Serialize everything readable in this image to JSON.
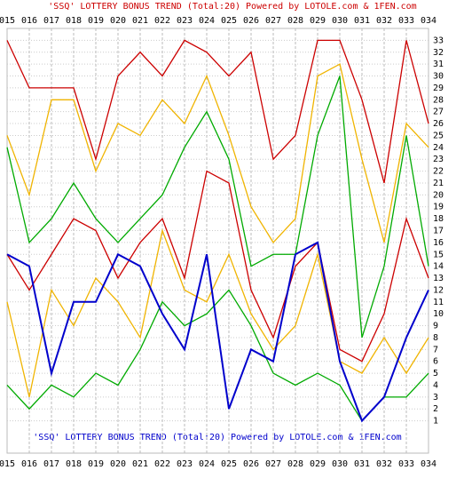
{
  "chart_data": {
    "type": "line",
    "title": "'SSQ' LOTTERY BONUS TREND (Total:20)  Powered by LOTOLE.com & 1FEN.com",
    "categories": [
      "015",
      "016",
      "017",
      "018",
      "019",
      "020",
      "021",
      "022",
      "023",
      "024",
      "025",
      "026",
      "027",
      "028",
      "029",
      "030",
      "031",
      "032",
      "033",
      "034"
    ],
    "series": [
      {
        "color": "#cc0000",
        "values": [
          33,
          29,
          29,
          29,
          23,
          30,
          32,
          30,
          33,
          32,
          30,
          32,
          23,
          25,
          33,
          33,
          28,
          21,
          33,
          26
        ]
      },
      {
        "color": "#f0b400",
        "values": [
          25,
          20,
          28,
          28,
          22,
          26,
          25,
          28,
          26,
          30,
          25,
          19,
          16,
          18,
          30,
          31,
          23,
          16,
          26,
          24
        ]
      },
      {
        "color": "#00aa00",
        "values": [
          24,
          16,
          18,
          21,
          18,
          16,
          18,
          20,
          24,
          27,
          23,
          14,
          15,
          15,
          25,
          30,
          8,
          14,
          25,
          14
        ]
      },
      {
        "color": "#cc0000",
        "values": [
          15,
          12,
          15,
          18,
          17,
          13,
          16,
          18,
          13,
          22,
          21,
          12,
          8,
          14,
          16,
          7,
          6,
          10,
          18,
          13
        ]
      },
      {
        "color": "#f0b400",
        "values": [
          11,
          3,
          12,
          9,
          13,
          11,
          8,
          17,
          12,
          11,
          15,
          10,
          7,
          9,
          15,
          6,
          5,
          8,
          5,
          8
        ]
      },
      {
        "color": "#00aa00",
        "values": [
          4,
          2,
          4,
          3,
          5,
          4,
          7,
          11,
          9,
          10,
          12,
          9,
          5,
          4,
          5,
          4,
          1,
          3,
          3,
          5
        ]
      },
      {
        "color": "#0000cc",
        "values": [
          15,
          14,
          5,
          11,
          11,
          15,
          14,
          10,
          7,
          15,
          2,
          7,
          6,
          15,
          16,
          6,
          1,
          3,
          8,
          12
        ]
      }
    ],
    "ylim": [
      0,
      34
    ],
    "yticks": [
      1,
      2,
      3,
      4,
      5,
      6,
      7,
      8,
      9,
      10,
      11,
      12,
      13,
      14,
      15,
      16,
      17,
      18,
      19,
      20,
      21,
      22,
      23,
      24,
      25,
      26,
      27,
      28,
      29,
      30,
      31,
      32,
      33
    ],
    "grid": true
  }
}
